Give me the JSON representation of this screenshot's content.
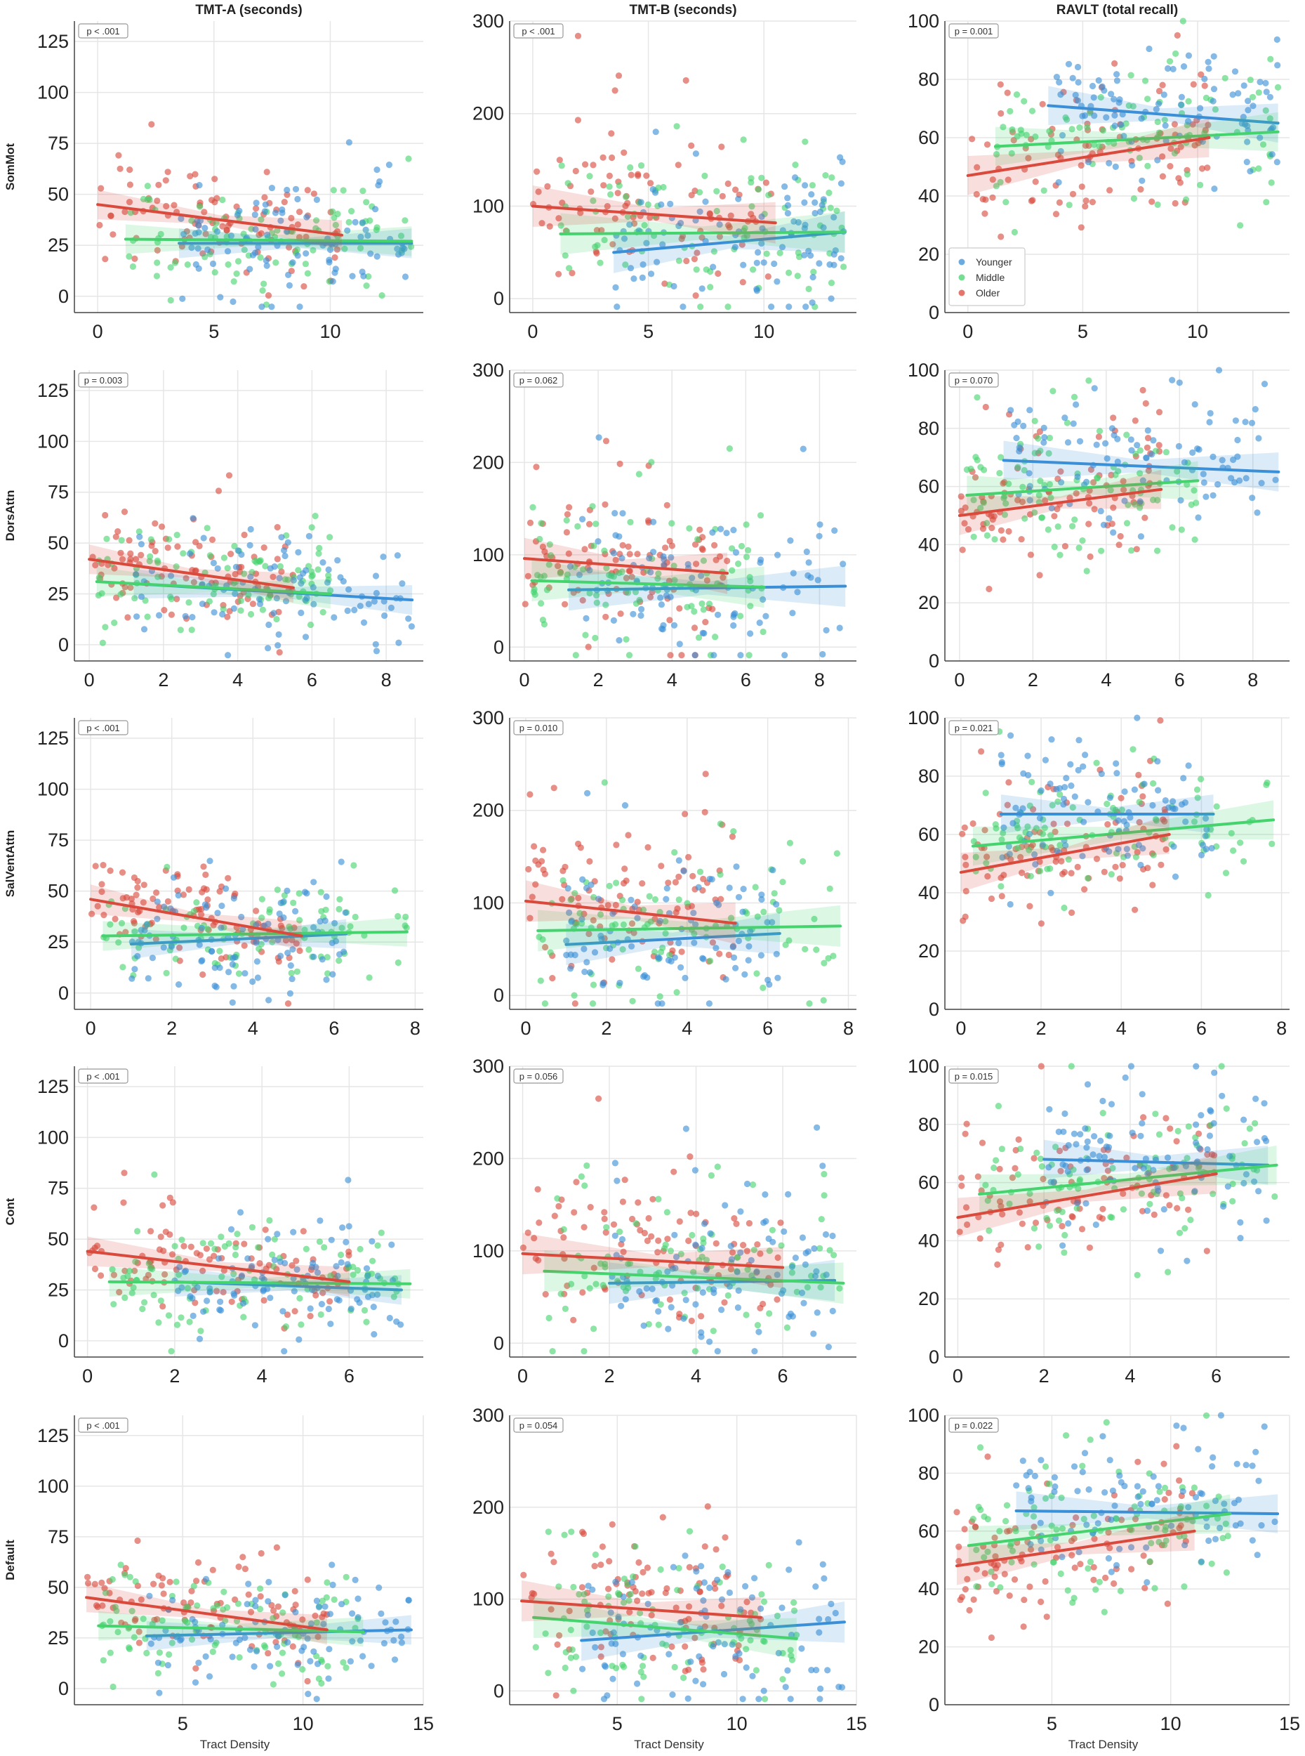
{
  "chart_data": {
    "type": "scatter",
    "column_titles": [
      "TMT-A (seconds)",
      "TMT-B (seconds)",
      "RAVLT (total recall)"
    ],
    "row_labels": [
      "SomMot",
      "DorsAttn",
      "SalVentAttn",
      "Cont",
      "Default"
    ],
    "xlabel": "Tract Density",
    "series": [
      {
        "name": "Younger",
        "color": "#3a8fd6"
      },
      {
        "name": "Middle",
        "color": "#45d36e"
      },
      {
        "name": "Older",
        "color": "#d94a3d"
      }
    ],
    "legend": {
      "placement": "lower-left",
      "panel_row": 0,
      "panel_col": 2
    },
    "columns": [
      {
        "ylim": [
          -8,
          135
        ],
        "yticks": [
          0,
          25,
          50,
          75,
          100,
          125
        ]
      },
      {
        "ylim": [
          -15,
          300
        ],
        "yticks": [
          0,
          100,
          200,
          300
        ]
      },
      {
        "ylim": [
          0,
          100
        ],
        "yticks": [
          0,
          20,
          40,
          60,
          80,
          100
        ]
      }
    ],
    "rows": [
      {
        "xlim": [
          -1,
          14
        ],
        "xticks": [
          0,
          5,
          10
        ],
        "xrange": {
          "Younger": [
            3.5,
            13.5
          ],
          "Middle": [
            1.2,
            13.5
          ],
          "Older": [
            0,
            10.5
          ]
        }
      },
      {
        "xlim": [
          -0.4,
          9
        ],
        "xticks": [
          0,
          2,
          4,
          6,
          8
        ],
        "xrange": {
          "Younger": [
            1.2,
            8.7
          ],
          "Middle": [
            0.2,
            6.5
          ],
          "Older": [
            0,
            5.5
          ]
        }
      },
      {
        "xlim": [
          -0.4,
          8.2
        ],
        "xticks": [
          0,
          2,
          4,
          6,
          8
        ],
        "xrange": {
          "Younger": [
            1,
            6.3
          ],
          "Middle": [
            0.3,
            7.8
          ],
          "Older": [
            0,
            5.2
          ]
        }
      },
      {
        "xlim": [
          -0.3,
          7.7
        ],
        "xticks": [
          0,
          2,
          4,
          6
        ],
        "xrange": {
          "Younger": [
            2,
            7.2
          ],
          "Middle": [
            0.5,
            7.4
          ],
          "Older": [
            0,
            6
          ]
        }
      },
      {
        "xlim": [
          0.5,
          15
        ],
        "xticks": [
          5,
          10,
          15
        ],
        "xrange": {
          "Younger": [
            3.5,
            14.5
          ],
          "Middle": [
            1.5,
            12.5
          ],
          "Older": [
            1,
            11
          ]
        }
      }
    ],
    "panels": [
      [
        {
          "p": "p < .001",
          "lines": {
            "Younger": [
              26,
              26
            ],
            "Middle": [
              28,
              27
            ],
            "Older": [
              45,
              30
            ]
          }
        },
        {
          "p": "p < .001",
          "lines": {
            "Younger": [
              50,
              72
            ],
            "Middle": [
              70,
              72
            ],
            "Older": [
              100,
              82
            ]
          }
        },
        {
          "p": "p = 0.001",
          "lines": {
            "Younger": [
              71,
              65
            ],
            "Middle": [
              57,
              62
            ],
            "Older": [
              47,
              60
            ]
          }
        }
      ],
      [
        {
          "p": "p = 0.003",
          "lines": {
            "Younger": [
              30,
              22
            ],
            "Middle": [
              31,
              25
            ],
            "Older": [
              42,
              28
            ]
          }
        },
        {
          "p": "p = 0.062",
          "lines": {
            "Younger": [
              62,
              66
            ],
            "Middle": [
              72,
              65
            ],
            "Older": [
              96,
              80
            ]
          }
        },
        {
          "p": "p = 0.070",
          "lines": {
            "Younger": [
              69,
              65
            ],
            "Middle": [
              57,
              62
            ],
            "Older": [
              50,
              59
            ]
          }
        }
      ],
      [
        {
          "p": "p < .001",
          "lines": {
            "Younger": [
              24,
              29
            ],
            "Middle": [
              28,
              30
            ],
            "Older": [
              46,
              28
            ]
          }
        },
        {
          "p": "p = 0.010",
          "lines": {
            "Younger": [
              55,
              67
            ],
            "Middle": [
              70,
              75
            ],
            "Older": [
              102,
              78
            ]
          }
        },
        {
          "p": "p = 0.021",
          "lines": {
            "Younger": [
              67,
              67
            ],
            "Middle": [
              56,
              65
            ],
            "Older": [
              47,
              60
            ]
          }
        }
      ],
      [
        {
          "p": "p < .001",
          "lines": {
            "Younger": [
              29,
              25
            ],
            "Middle": [
              29,
              28
            ],
            "Older": [
              44,
              29
            ]
          }
        },
        {
          "p": "p = 0.056",
          "lines": {
            "Younger": [
              65,
              68
            ],
            "Middle": [
              78,
              65
            ],
            "Older": [
              97,
              82
            ]
          }
        },
        {
          "p": "p = 0.015",
          "lines": {
            "Younger": [
              68,
              66
            ],
            "Middle": [
              56,
              66
            ],
            "Older": [
              48,
              63
            ]
          }
        }
      ],
      [
        {
          "p": "p < .001",
          "lines": {
            "Younger": [
              26,
              29
            ],
            "Middle": [
              31,
              28
            ],
            "Older": [
              45,
              29
            ]
          }
        },
        {
          "p": "p = 0.054",
          "lines": {
            "Younger": [
              55,
              75
            ],
            "Middle": [
              80,
              57
            ],
            "Older": [
              98,
              80
            ]
          }
        },
        {
          "p": "p = 0.022",
          "lines": {
            "Younger": [
              67,
              66
            ],
            "Middle": [
              55,
              66
            ],
            "Older": [
              48,
              60
            ]
          }
        }
      ]
    ]
  }
}
